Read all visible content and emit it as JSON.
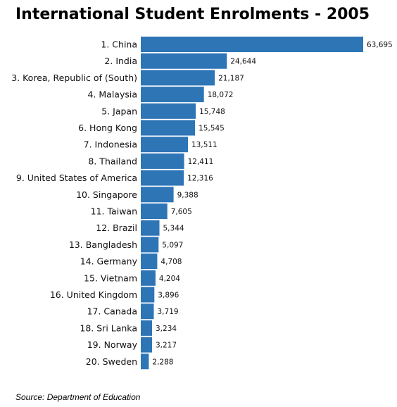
{
  "colors": {
    "bar": "#2e75b6",
    "background": "#ffffff",
    "text": "#111111"
  },
  "chart_data": {
    "type": "bar",
    "orientation": "horizontal",
    "title": "International Student Enrolments - 2005",
    "xlabel": "",
    "ylabel": "",
    "grid": false,
    "legend": "none",
    "xlim": [
      0,
      63695
    ],
    "categories": [
      "1. China",
      "2. India",
      "3. Korea, Republic of (South)",
      "4. Malaysia",
      "5. Japan",
      "6. Hong Kong",
      "7. Indonesia",
      "8. Thailand",
      "9. United States of America",
      "10. Singapore",
      "11. Taiwan",
      "12. Brazil",
      "13. Bangladesh",
      "14. Germany",
      "15. Vietnam",
      "16. United Kingdom",
      "17. Canada",
      "18. Sri Lanka",
      "19. Norway",
      "20. Sweden"
    ],
    "values": [
      63695,
      24644,
      21187,
      18072,
      15748,
      15545,
      13511,
      12411,
      12316,
      9388,
      7605,
      5344,
      5097,
      4708,
      4204,
      3896,
      3719,
      3234,
      3217,
      2288
    ],
    "value_labels": [
      "63,695",
      "24,644",
      "21,187",
      "18,072",
      "15,748",
      "15,545",
      "13,511",
      "12,411",
      "12,316",
      "9,388",
      "7,605",
      "5,344",
      "5,097",
      "4,708",
      "4,204",
      "3,896",
      "3,719",
      "3,234",
      "3,217",
      "2,288"
    ]
  },
  "footer": {
    "source": "Source: Department of Education"
  }
}
